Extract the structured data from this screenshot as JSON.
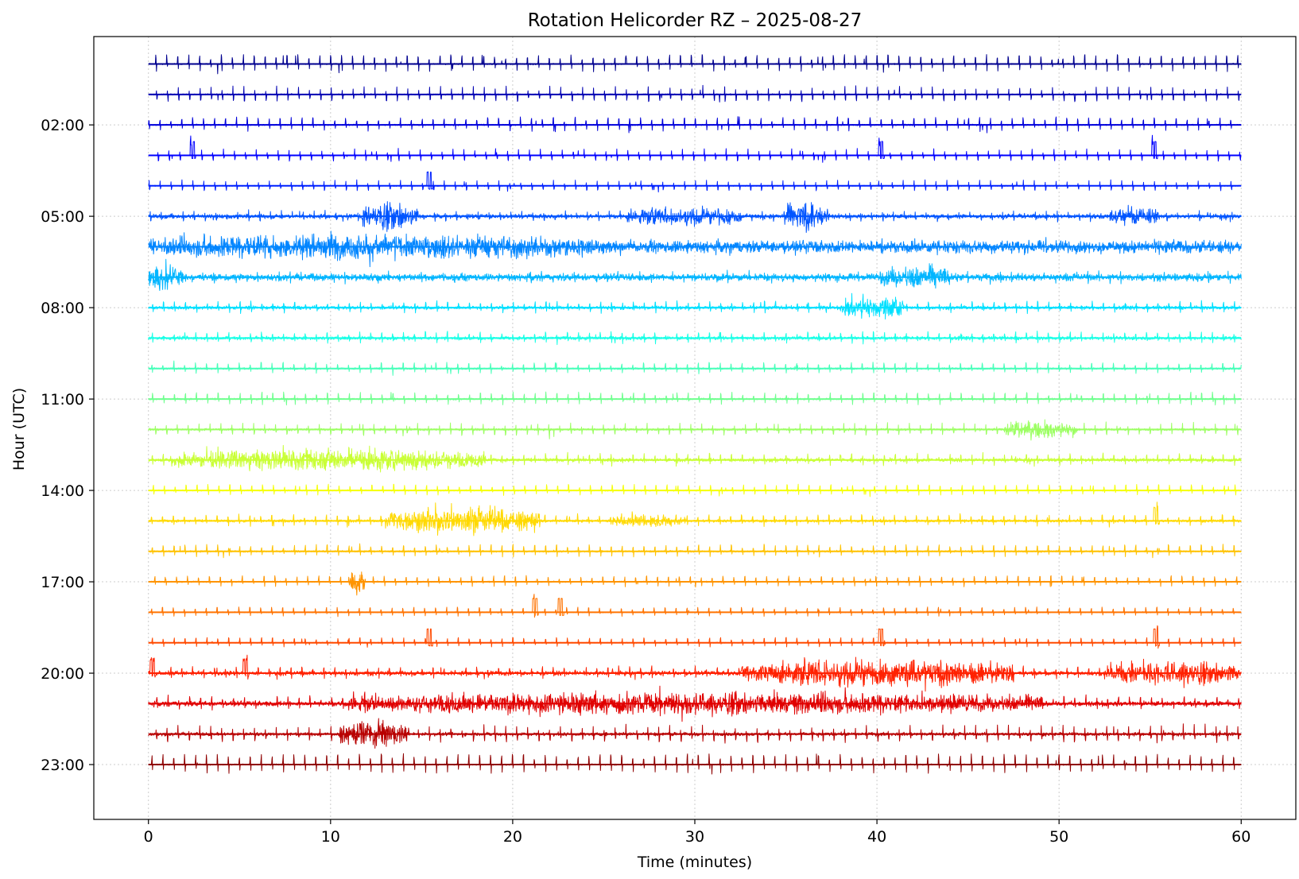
{
  "chart_data": {
    "type": "line",
    "title": "Rotation Helicorder RZ – 2025-08-27",
    "xlabel": "Time (minutes)",
    "ylabel": "Hour (UTC)",
    "xlim": [
      -3,
      63
    ],
    "ylim": [
      -0.9,
      24.8
    ],
    "x_ticks": [
      0,
      10,
      20,
      30,
      40,
      50,
      60
    ],
    "x_tick_labels": [
      "0",
      "10",
      "20",
      "30",
      "40",
      "50",
      "60"
    ],
    "y_ticks": [
      2,
      5,
      8,
      11,
      14,
      17,
      20,
      23
    ],
    "y_tick_labels": [
      "02:00",
      "05:00",
      "08:00",
      "11:00",
      "14:00",
      "17:00",
      "20:00",
      "23:00"
    ],
    "grid": true,
    "colormap": "jet",
    "hours": [
      0,
      1,
      2,
      3,
      4,
      5,
      6,
      7,
      8,
      9,
      10,
      11,
      12,
      13,
      14,
      15,
      16,
      17,
      18,
      19,
      20,
      21,
      22,
      23
    ],
    "colors": [
      "#00008f",
      "#0000b3",
      "#0000db",
      "#0000ff",
      "#0021ff",
      "#0055ff",
      "#0085ff",
      "#00b5ff",
      "#00e0ff",
      "#19ffe6",
      "#46ffb9",
      "#70ff8f",
      "#9cff63",
      "#c9ff36",
      "#f5ff0a",
      "#ffd900",
      "#ffc200",
      "#ff9400",
      "#ff7300",
      "#ff4a00",
      "#ff2100",
      "#e00000",
      "#b80000",
      "#8f0000"
    ],
    "spike_interval_min": 0.6,
    "spike_amplitude": [
      0.22,
      0.2,
      0.18,
      0.16,
      0.14,
      0.12,
      0.12,
      0.12,
      0.14,
      0.14,
      0.14,
      0.16,
      0.16,
      0.14,
      0.14,
      0.14,
      0.16,
      0.14,
      0.12,
      0.12,
      0.14,
      0.16,
      0.22,
      0.25
    ],
    "noise_amplitude": [
      0.03,
      0.03,
      0.03,
      0.02,
      0.02,
      0.1,
      0.28,
      0.16,
      0.08,
      0.08,
      0.04,
      0.04,
      0.05,
      0.08,
      0.03,
      0.06,
      0.04,
      0.03,
      0.02,
      0.02,
      0.1,
      0.12,
      0.08,
      0.03
    ],
    "bursts": [
      {
        "hour": 5,
        "start": 11.7,
        "end": 14.8,
        "amp": 0.45
      },
      {
        "hour": 5,
        "start": 34.9,
        "end": 37.3,
        "amp": 0.45
      },
      {
        "hour": 5,
        "start": 52.8,
        "end": 55.5,
        "amp": 0.3
      },
      {
        "hour": 5,
        "start": 26.3,
        "end": 32.5,
        "amp": 0.3
      },
      {
        "hour": 6,
        "start": 0.0,
        "end": 25.0,
        "amp": 0.35
      },
      {
        "hour": 7,
        "start": 0.0,
        "end": 1.9,
        "amp": 0.4
      },
      {
        "hour": 7,
        "start": 40.2,
        "end": 44.0,
        "amp": 0.35
      },
      {
        "hour": 8,
        "start": 38.0,
        "end": 41.5,
        "amp": 0.4
      },
      {
        "hour": 12,
        "start": 47.0,
        "end": 51.0,
        "amp": 0.3
      },
      {
        "hour": 13,
        "start": 1.2,
        "end": 18.5,
        "amp": 0.35
      },
      {
        "hour": 15,
        "start": 13.0,
        "end": 21.5,
        "amp": 0.45
      },
      {
        "hour": 15,
        "start": 25.5,
        "end": 29.5,
        "amp": 0.2
      },
      {
        "hour": 17,
        "start": 11.0,
        "end": 11.9,
        "amp": 0.4
      },
      {
        "hour": 20,
        "start": 32.5,
        "end": 47.5,
        "amp": 0.45
      },
      {
        "hour": 20,
        "start": 52.5,
        "end": 60.0,
        "amp": 0.4
      },
      {
        "hour": 21,
        "start": 11.0,
        "end": 49.0,
        "amp": 0.35
      },
      {
        "hour": 22,
        "start": 10.5,
        "end": 14.3,
        "amp": 0.45
      }
    ],
    "steps": [
      {
        "hour": 3,
        "at": 2.3
      },
      {
        "hour": 3,
        "at": 40.1
      },
      {
        "hour": 3,
        "at": 55.1
      },
      {
        "hour": 4,
        "at": 15.3
      },
      {
        "hour": 15,
        "at": 55.2
      },
      {
        "hour": 18,
        "at": 21.1
      },
      {
        "hour": 18,
        "at": 22.5
      },
      {
        "hour": 19,
        "at": 15.3
      },
      {
        "hour": 19,
        "at": 40.1
      },
      {
        "hour": 19,
        "at": 55.2
      },
      {
        "hour": 20,
        "at": 0.1
      },
      {
        "hour": 20,
        "at": 5.2
      }
    ]
  }
}
